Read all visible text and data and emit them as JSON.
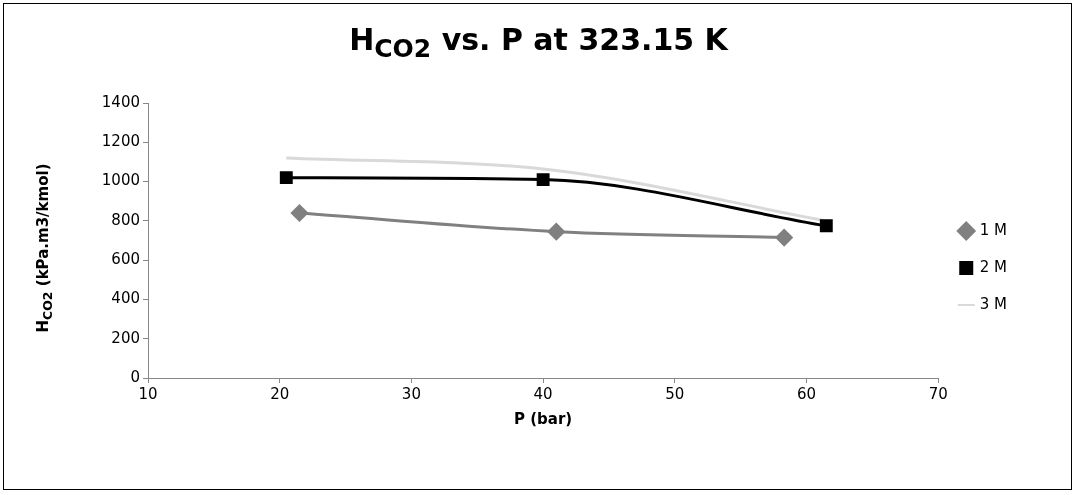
{
  "chart_data": {
    "type": "line",
    "title": "H$_{CO2}$ vs. P at 323.15 K",
    "xlabel": "P (bar)",
    "ylabel": "H$_{CO2}$ (kPa.m3/kmol)",
    "xlim": [
      10,
      70
    ],
    "xticks": [
      10,
      20,
      30,
      40,
      50,
      60,
      70
    ],
    "ylim": [
      0,
      1400
    ],
    "yticks": [
      0,
      200,
      400,
      600,
      800,
      1000,
      1200,
      1400
    ],
    "grid": false,
    "legend": "right",
    "series": [
      {
        "name": "1 M",
        "color": "#808080",
        "marker": "diamond",
        "x": [
          21.5,
          41,
          58.3
        ],
        "values": [
          840,
          745,
          715
        ]
      },
      {
        "name": "2 M",
        "color": "#000000",
        "marker": "square",
        "x": [
          20.5,
          40,
          61.5
        ],
        "values": [
          1020,
          1010,
          775
        ]
      },
      {
        "name": "3 M",
        "color": "#d9d9d9",
        "marker": "none",
        "x": [
          20.5,
          40.5,
          61.5
        ],
        "values": [
          1120,
          1060,
          800
        ]
      }
    ]
  }
}
